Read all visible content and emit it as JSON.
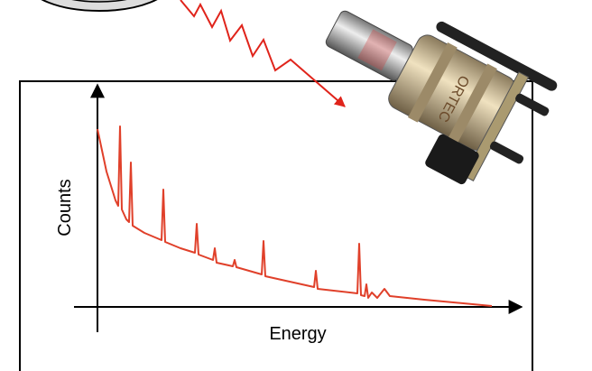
{
  "axes": {
    "y_label": "Counts",
    "x_label": "Energy"
  },
  "detector": {
    "label": "ORTEC"
  }
}
